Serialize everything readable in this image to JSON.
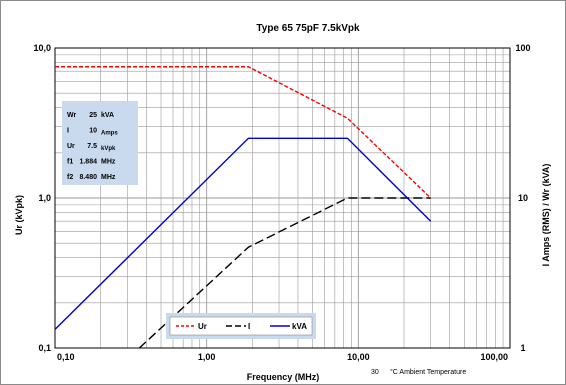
{
  "chart_data": {
    "type": "line",
    "title": "Type 65  75pF    7.5kVpk",
    "xlabel": "Frequency (MHz)",
    "ylabel_left": "Ur (kVpk)",
    "ylabel_right": "I Amps (RMS) / Wr (kVA)",
    "x_scale": "log",
    "y_scale": "log",
    "xlim": [
      0.1,
      100
    ],
    "ylim_left": [
      0.1,
      10
    ],
    "ylim_right": [
      1,
      100
    ],
    "x_ticks": [
      0.1,
      1,
      10,
      100
    ],
    "x_tick_labels": [
      "0,10",
      "1,00",
      "10,00",
      "100,00"
    ],
    "y_left_ticks": [
      0.1,
      1,
      10
    ],
    "y_left_tick_labels": [
      "0,1",
      "1,0",
      "10,0"
    ],
    "y_right_ticks": [
      1,
      10,
      100
    ],
    "y_right_tick_labels": [
      "1",
      "10",
      "100"
    ],
    "grid": true,
    "legend_position": "bottom-center",
    "series": [
      {
        "name": "Ur",
        "axis": "left",
        "color": "#ff0000",
        "dash": "dashed",
        "points": [
          [
            0.1,
            7.5
          ],
          [
            1.884,
            7.5
          ],
          [
            8.48,
            3.4
          ],
          [
            30,
            1.0
          ]
        ]
      },
      {
        "name": "I",
        "axis": "right",
        "color": "#000000",
        "dash": "longdash",
        "points": [
          [
            0.36,
            1.0
          ],
          [
            1.884,
            4.7
          ],
          [
            8.48,
            10
          ],
          [
            30,
            10
          ]
        ]
      },
      {
        "name": "kVA",
        "axis": "right",
        "color": "#0000cc",
        "dash": "solid",
        "points": [
          [
            0.1,
            1.33
          ],
          [
            1.884,
            25
          ],
          [
            8.48,
            25
          ],
          [
            30,
            7.0
          ]
        ]
      }
    ],
    "info_box": {
      "rows": [
        {
          "label": "Wr",
          "value": "25",
          "unit": "kVA"
        },
        {
          "label": "I",
          "value": "10",
          "unit": "Amps"
        },
        {
          "label": "Ur",
          "value": "7.5",
          "unit": "kVpk"
        },
        {
          "label": "f1",
          "value": "1.884",
          "unit": "MHz"
        },
        {
          "label": "f2",
          "value": "8.480",
          "unit": "MHz"
        }
      ]
    },
    "ambient": {
      "value": "30",
      "label": "°C  Ambient Temperature"
    }
  },
  "colors": {
    "plot_background": "#ffffff",
    "grid": "#9a9a9a",
    "info_box": "#c9d9ee",
    "frame": "#8a8a8a"
  }
}
